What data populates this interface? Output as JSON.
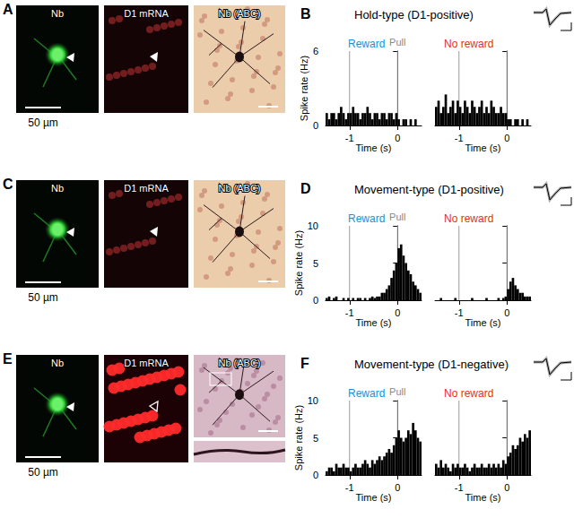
{
  "chart_data": [
    {
      "type": "histogram",
      "panel": "B",
      "title": "Hold-type (D1-positive)",
      "x_label": "Time (s)",
      "y_label": "Spike rate (Hz)",
      "xlim": [
        -1.5,
        0.5
      ],
      "xticks": [
        -1,
        0
      ],
      "ylim": [
        0,
        6
      ],
      "yticks": [
        0,
        6
      ],
      "bins": [
        -1.5,
        -1.45,
        -1.4,
        -1.35,
        -1.3,
        -1.25,
        -1.2,
        -1.15,
        -1.1,
        -1.05,
        -1,
        -0.95,
        -0.9,
        -0.85,
        -0.8,
        -0.75,
        -0.7,
        -0.65,
        -0.6,
        -0.55,
        -0.5,
        -0.45,
        -0.4,
        -0.35,
        -0.3,
        -0.25,
        -0.2,
        -0.15,
        -0.1,
        -0.05,
        0,
        0.05,
        0.1,
        0.15,
        0.2,
        0.25,
        0.3,
        0.35,
        0.4,
        0.45,
        0.5
      ],
      "series": [
        {
          "name": "Reward",
          "color": "#000000",
          "values": [
            1,
            0.5,
            1,
            1,
            0.5,
            1,
            1.5,
            1,
            0.5,
            1,
            1,
            1.5,
            1,
            1,
            0.5,
            1,
            1,
            1.5,
            1,
            0.5,
            1,
            1,
            0.5,
            1,
            1,
            0.5,
            1,
            1,
            0.5,
            1,
            0.5,
            0,
            0.5,
            0.5,
            0,
            0.5,
            0,
            0.5,
            0,
            0
          ]
        },
        {
          "name": "No reward",
          "color": "#000000",
          "values": [
            1.5,
            2,
            1,
            1.5,
            2.5,
            1,
            1.5,
            2,
            1,
            2,
            1.5,
            1,
            2,
            1.5,
            1,
            2,
            1.5,
            1,
            1.5,
            2,
            1,
            1.5,
            1,
            2,
            1.5,
            1,
            1,
            1.5,
            1,
            1,
            0.5,
            0.5,
            0,
            0.5,
            0.5,
            0,
            0.5,
            0,
            0.5,
            0
          ]
        }
      ],
      "annotations": [
        {
          "x": -1
        },
        {
          "x": 0,
          "label": "Pull"
        }
      ]
    },
    {
      "type": "histogram",
      "panel": "D",
      "title": "Movement-type (D1-positive)",
      "x_label": "Time (s)",
      "y_label": "Spike rate (Hz)",
      "xlim": [
        -1.5,
        0.5
      ],
      "xticks": [
        -1,
        0
      ],
      "ylim": [
        0,
        10
      ],
      "yticks": [
        0,
        5,
        10
      ],
      "bins": [
        -1.5,
        -1.45,
        -1.4,
        -1.35,
        -1.3,
        -1.25,
        -1.2,
        -1.15,
        -1.1,
        -1.05,
        -1,
        -0.95,
        -0.9,
        -0.85,
        -0.8,
        -0.75,
        -0.7,
        -0.65,
        -0.6,
        -0.55,
        -0.5,
        -0.45,
        -0.4,
        -0.35,
        -0.3,
        -0.25,
        -0.2,
        -0.15,
        -0.1,
        -0.05,
        0,
        0.05,
        0.1,
        0.15,
        0.2,
        0.25,
        0.3,
        0.35,
        0.4,
        0.45,
        0.5
      ],
      "series": [
        {
          "name": "Reward",
          "color": "#000000",
          "values": [
            0.3,
            0.5,
            0,
            0.3,
            0.5,
            0,
            0,
            0.3,
            0,
            0.3,
            0,
            0.3,
            0,
            0.3,
            0.3,
            0,
            0.3,
            0,
            0.3,
            0.5,
            0.3,
            0.5,
            0.5,
            1,
            1,
            1.5,
            2,
            3,
            4,
            5,
            7,
            7.5,
            6,
            5,
            4,
            3.5,
            2.5,
            2,
            1.5,
            1
          ]
        },
        {
          "name": "No reward",
          "color": "#000000",
          "values": [
            0,
            0,
            0.3,
            0,
            0,
            0,
            0,
            0,
            0.3,
            0,
            0,
            0,
            0,
            0,
            0,
            0.3,
            0,
            0,
            0,
            0,
            0,
            0.3,
            0,
            0,
            0,
            0,
            0.3,
            0,
            0.3,
            0.5,
            1.5,
            2.5,
            3,
            2,
            1.5,
            1,
            1,
            0.5,
            0.5,
            0.5
          ]
        }
      ],
      "annotations": [
        {
          "x": -1
        },
        {
          "x": 0,
          "label": "Pull"
        }
      ]
    },
    {
      "type": "histogram",
      "panel": "F",
      "title": "Movement-type (D1-negative)",
      "x_label": "Time (s)",
      "y_label": "Spike rate (Hz)",
      "xlim": [
        -1.5,
        0.5
      ],
      "xticks": [
        -1,
        0
      ],
      "ylim": [
        0,
        10
      ],
      "yticks": [
        0,
        5,
        10
      ],
      "bins": [
        -1.5,
        -1.45,
        -1.4,
        -1.35,
        -1.3,
        -1.25,
        -1.2,
        -1.15,
        -1.1,
        -1.05,
        -1,
        -0.95,
        -0.9,
        -0.85,
        -0.8,
        -0.75,
        -0.7,
        -0.65,
        -0.6,
        -0.55,
        -0.5,
        -0.45,
        -0.4,
        -0.35,
        -0.3,
        -0.25,
        -0.2,
        -0.15,
        -0.1,
        -0.05,
        0,
        0.05,
        0.1,
        0.15,
        0.2,
        0.25,
        0.3,
        0.35,
        0.4,
        0.45,
        0.5
      ],
      "series": [
        {
          "name": "Reward",
          "color": "#000000",
          "values": [
            0.5,
            1,
            1,
            0.5,
            1.5,
            1,
            1,
            1.5,
            1,
            1,
            0.5,
            1,
            1.5,
            1,
            1,
            1.5,
            2,
            1.5,
            1,
            2,
            1.5,
            2,
            2.5,
            2,
            2.5,
            3,
            3.5,
            3,
            4,
            5,
            6,
            5,
            4.5,
            5,
            6,
            5.5,
            7,
            6,
            5,
            4.5
          ]
        },
        {
          "name": "No reward",
          "color": "#000000",
          "values": [
            1.5,
            1,
            2,
            1,
            1.5,
            1,
            0.5,
            1.5,
            1,
            1.5,
            1,
            1,
            1.5,
            1,
            0.5,
            1,
            1.5,
            1,
            1,
            1.5,
            1,
            1,
            1.5,
            1,
            1.5,
            1,
            1.5,
            1,
            2,
            1.5,
            2.5,
            3,
            4,
            3.5,
            4,
            5,
            4.5,
            5.5,
            5,
            6
          ]
        }
      ],
      "annotations": [
        {
          "x": -1
        },
        {
          "x": 0,
          "label": "Pull"
        }
      ]
    }
  ],
  "micrographs": [
    {
      "panel": "A",
      "images": [
        {
          "label": "Nb",
          "scale_bar": "50 µm"
        },
        {
          "label": "D1 mRNA"
        },
        {
          "label": "Nb (ABC)"
        }
      ]
    },
    {
      "panel": "C",
      "images": [
        {
          "label": "Nb",
          "scale_bar": "50 µm"
        },
        {
          "label": "D1 mRNA"
        },
        {
          "label": "Nb (ABC)"
        }
      ]
    },
    {
      "panel": "E",
      "images": [
        {
          "label": "Nb",
          "scale_bar": "50 µm"
        },
        {
          "label": "D1 mRNA"
        },
        {
          "label": "Nb (ABC)"
        }
      ]
    }
  ]
}
